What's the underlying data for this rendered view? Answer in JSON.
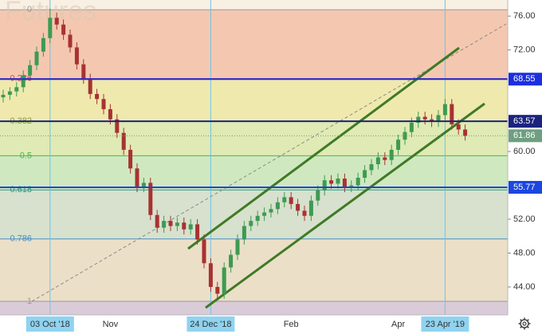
{
  "chart_data": {
    "type": "candlestick",
    "title": "Futures",
    "categories": [
      null,
      null,
      null,
      null,
      null,
      null,
      null,
      "03 Oct '18",
      null,
      null,
      null,
      null,
      null,
      null,
      null,
      null,
      "Nov",
      null,
      null,
      null,
      null,
      null,
      null,
      null,
      null,
      null,
      null,
      null,
      null,
      null,
      null,
      "24 Dec '18",
      null,
      null,
      null,
      null,
      null,
      null,
      null,
      null,
      null,
      null,
      null,
      "Feb",
      null,
      null,
      null,
      null,
      null,
      null,
      null,
      null,
      null,
      null,
      null,
      null,
      null,
      null,
      null,
      "Apr",
      null,
      null,
      null,
      null,
      null,
      null,
      "23 Apr '19",
      null,
      null,
      null
    ],
    "highlighted": [
      7,
      31,
      66
    ],
    "open": [
      66.4,
      66.7,
      67.1,
      67.6,
      69.0,
      70.2,
      71.8,
      73.4,
      75.8,
      75.0,
      73.8,
      72.3,
      70.3,
      68.6,
      66.8,
      66.2,
      65.0,
      63.8,
      62.2,
      60.2,
      58.0,
      55.8,
      56.3,
      52.5,
      51.0,
      51.8,
      51.2,
      51.6,
      50.8,
      51.4,
      49.6,
      46.8,
      44.0,
      43.2,
      46.3,
      47.8,
      49.6,
      51.2,
      51.8,
      52.4,
      52.8,
      53.2,
      54.0,
      54.6,
      53.8,
      53.0,
      52.4,
      54.2,
      55.4,
      56.6,
      56.2,
      56.8,
      55.8,
      56.0,
      56.9,
      57.8,
      58.5,
      59.3,
      59.0,
      60.2,
      61.4,
      62.3,
      63.4,
      64.1,
      63.8,
      63.5,
      64.3,
      65.6,
      63.2,
      62.6
    ],
    "high": [
      67.3,
      67.6,
      68.2,
      69.6,
      70.8,
      72.4,
      74.0,
      76.9,
      76.4,
      75.6,
      74.4,
      72.9,
      70.9,
      69.2,
      67.4,
      66.8,
      65.6,
      64.4,
      62.8,
      60.8,
      58.6,
      56.9,
      56.9,
      53.1,
      52.4,
      52.4,
      52.2,
      52.2,
      52.0,
      52.0,
      50.2,
      47.4,
      44.6,
      46.9,
      48.4,
      50.2,
      51.8,
      52.4,
      53.0,
      53.4,
      53.8,
      54.6,
      55.2,
      55.2,
      54.4,
      53.6,
      54.8,
      56.0,
      57.2,
      57.2,
      57.4,
      57.4,
      56.6,
      57.5,
      58.4,
      59.1,
      59.9,
      59.9,
      60.8,
      62.0,
      62.9,
      64.0,
      64.7,
      64.7,
      64.4,
      64.9,
      66.2,
      66.2,
      63.8,
      63.2
    ],
    "low": [
      65.8,
      66.1,
      66.5,
      67.0,
      68.4,
      69.6,
      71.2,
      72.8,
      74.4,
      73.2,
      71.7,
      69.7,
      68.0,
      66.2,
      65.6,
      64.4,
      63.2,
      61.6,
      59.6,
      57.4,
      55.2,
      55.2,
      51.9,
      50.4,
      50.4,
      50.6,
      50.6,
      50.2,
      50.2,
      49.0,
      46.2,
      43.4,
      42.5,
      42.6,
      45.7,
      47.2,
      49.0,
      50.6,
      51.2,
      51.8,
      52.2,
      52.6,
      53.4,
      53.2,
      52.4,
      51.8,
      51.8,
      53.6,
      54.8,
      55.6,
      55.6,
      55.2,
      55.2,
      55.4,
      56.3,
      57.2,
      57.9,
      58.4,
      58.4,
      59.6,
      60.8,
      61.7,
      62.8,
      63.2,
      62.9,
      62.9,
      63.7,
      62.6,
      62.0,
      61.3
    ],
    "close": [
      66.7,
      67.1,
      67.6,
      69.0,
      70.2,
      71.8,
      73.4,
      75.8,
      75.0,
      73.8,
      72.3,
      70.3,
      68.6,
      66.8,
      66.2,
      65.0,
      63.8,
      62.2,
      60.2,
      58.0,
      55.8,
      56.3,
      52.5,
      51.0,
      51.8,
      51.2,
      51.6,
      50.8,
      51.4,
      49.6,
      46.8,
      44.0,
      43.2,
      46.3,
      47.8,
      49.6,
      51.2,
      51.8,
      52.4,
      52.8,
      53.2,
      54.0,
      54.6,
      53.8,
      53.0,
      52.4,
      54.2,
      55.4,
      56.6,
      56.2,
      56.8,
      55.8,
      56.0,
      56.9,
      57.8,
      58.5,
      59.3,
      59.0,
      60.2,
      61.4,
      62.3,
      63.4,
      64.1,
      63.8,
      63.5,
      64.3,
      65.6,
      63.2,
      62.6,
      61.86
    ],
    "up_color": "#3e9a52",
    "down_color": "#a83232",
    "last_price_color": "#6e9f80",
    "ylim": [
      40.7,
      77.9
    ],
    "yticks": [
      {
        "value": 76,
        "label": "76.00"
      },
      {
        "value": 72,
        "label": "72.00"
      },
      {
        "value": 60,
        "label": "60.00"
      },
      {
        "value": 52,
        "label": "52.00"
      },
      {
        "value": 48,
        "label": "48.00"
      },
      {
        "value": 44,
        "label": "44.00"
      }
    ],
    "fib_levels": [
      {
        "level": 0,
        "price": 76.75,
        "color": "#9a9a9a",
        "fill": "#f4c8b0"
      },
      {
        "level": 0.236,
        "price": 68.62,
        "color": "#c94a4a",
        "fill": "#efe9ae"
      },
      {
        "level": 0.382,
        "price": 63.59,
        "color": "#8c9c2c",
        "fill": "#dfeab4"
      },
      {
        "level": 0.5,
        "price": 59.5,
        "color": "#4fb34f",
        "fill": "#d0e8c0"
      },
      {
        "level": 0.618,
        "price": 55.46,
        "color": "#2a9a86",
        "fill": "#d7e1cd"
      },
      {
        "level": 0.786,
        "price": 49.67,
        "color": "#4a8fc4",
        "fill": "#ebdfc8"
      },
      {
        "level": 1,
        "price": 42.3,
        "color": "#9a9a9a",
        "fill": "#dacbd8"
      }
    ],
    "levels": [
      {
        "value": 68.55,
        "color": "#1b2ee0"
      },
      {
        "value": 63.57,
        "color": "#1a237e"
      },
      {
        "value": 55.77,
        "color": "#1b46e0"
      }
    ]
  }
}
